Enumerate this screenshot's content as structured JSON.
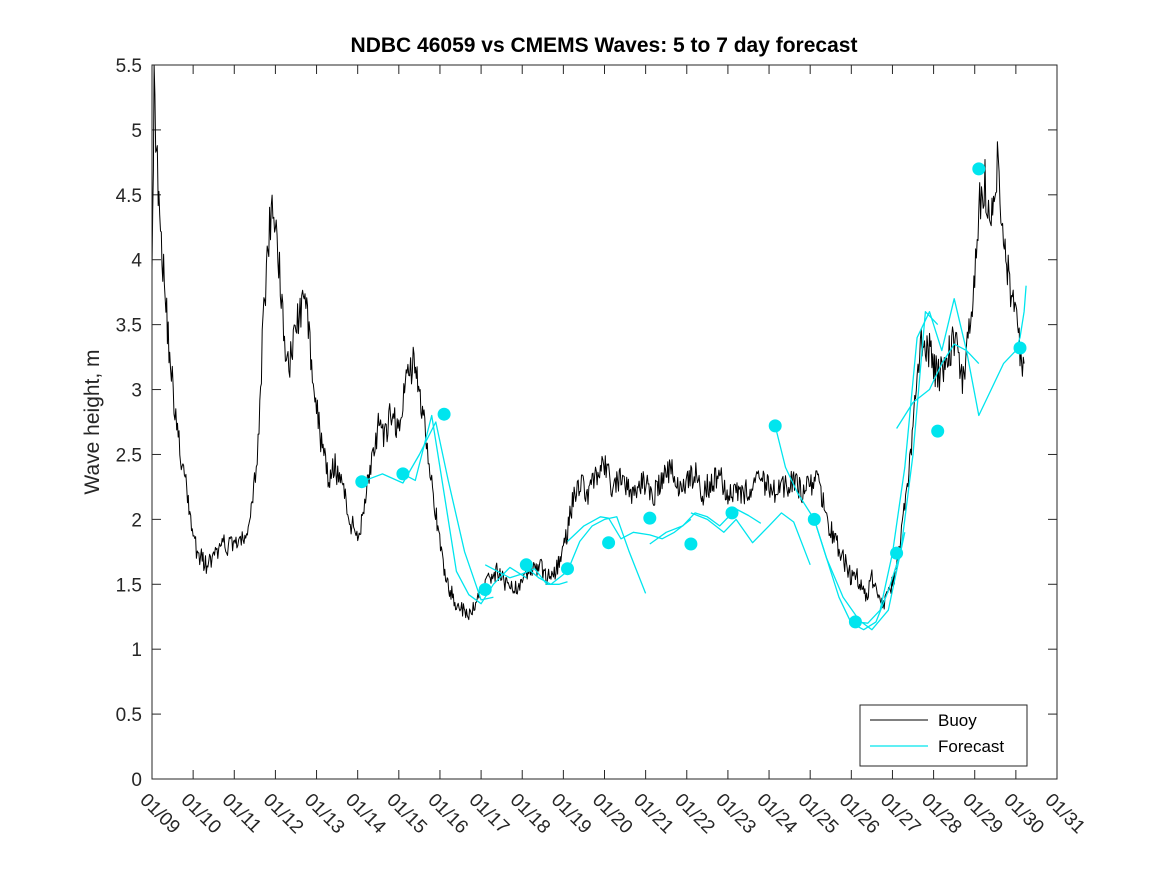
{
  "chart_data": {
    "type": "line",
    "title": "NDBC 46059 vs CMEMS Waves: 5 to 7 day forecast",
    "xlabel": "",
    "ylabel": "Wave height, m",
    "xlim": [
      0,
      22
    ],
    "ylim": [
      0,
      5.5
    ],
    "x_tick_labels": [
      "01/09",
      "01/10",
      "01/11",
      "01/12",
      "01/13",
      "01/14",
      "01/15",
      "01/16",
      "01/17",
      "01/18",
      "01/19",
      "01/20",
      "01/21",
      "01/22",
      "01/23",
      "01/24",
      "01/25",
      "01/26",
      "01/27",
      "01/28",
      "01/29",
      "01/30",
      "01/31"
    ],
    "y_ticks": [
      0,
      0.5,
      1,
      1.5,
      2,
      2.5,
      3,
      3.5,
      4,
      4.5,
      5,
      5.5
    ],
    "y_tick_labels": [
      "0",
      "0.5",
      "1",
      "1.5",
      "2",
      "2.5",
      "3",
      "3.5",
      "4",
      "4.5",
      "5",
      "5.5"
    ],
    "x_unit": "days since 01/09",
    "legend": {
      "position": "bottom-right",
      "entries": [
        "Buoy",
        "Forecast"
      ]
    },
    "colors": {
      "buoy": "#000000",
      "forecast": "#00e5ee",
      "axes": "#262626"
    },
    "series": [
      {
        "name": "Buoy",
        "color": "#000000",
        "x": [
          0,
          0.05,
          0.15,
          0.3,
          0.45,
          0.6,
          0.75,
          0.9,
          1.0,
          1.1,
          1.3,
          1.5,
          1.6,
          1.75,
          1.9,
          2.0,
          2.15,
          2.3,
          2.45,
          2.6,
          2.7,
          2.9,
          3.1,
          3.2,
          3.35,
          3.5,
          3.7,
          3.9,
          4.1,
          4.3,
          4.45,
          4.6,
          4.8,
          5.0,
          5.15,
          5.3,
          5.5,
          5.65,
          5.8,
          6.0,
          6.2,
          6.35,
          6.5,
          6.65,
          6.8,
          6.95,
          7.1,
          7.25,
          7.4,
          7.55,
          7.7,
          7.85,
          8.0,
          8.2,
          8.4,
          8.6,
          8.8,
          9.0,
          9.2,
          9.4,
          9.6,
          9.8,
          10.0,
          10.2,
          10.4,
          10.6,
          10.8,
          11.0,
          11.2,
          11.4,
          11.6,
          11.8,
          12.0,
          12.2,
          12.4,
          12.6,
          12.8,
          13.0,
          13.2,
          13.4,
          13.6,
          13.8,
          14.0,
          14.2,
          14.4,
          14.6,
          14.8,
          15.0,
          15.2,
          15.4,
          15.6,
          15.8,
          16.0,
          16.2,
          16.4,
          16.6,
          16.8,
          17.0,
          17.1,
          17.2,
          17.35,
          17.5,
          17.65,
          17.8,
          17.95,
          18.1,
          18.3,
          18.5,
          18.7,
          18.9,
          19.1,
          19.3,
          19.5,
          19.7,
          19.9,
          20.0,
          20.1,
          20.25,
          20.4,
          20.55,
          20.7,
          20.85,
          21.0,
          21.1,
          21.2
        ],
        "values": [
          4.1,
          5.3,
          4.6,
          3.8,
          3.2,
          2.7,
          2.4,
          2.1,
          1.9,
          1.75,
          1.65,
          1.7,
          1.75,
          1.8,
          1.8,
          1.85,
          1.8,
          1.9,
          2.1,
          2.7,
          3.5,
          4.4,
          4.0,
          3.4,
          3.2,
          3.5,
          3.7,
          3.2,
          2.6,
          2.3,
          2.4,
          2.3,
          2.0,
          1.85,
          2.1,
          2.4,
          2.7,
          2.6,
          2.8,
          2.7,
          3.1,
          3.2,
          3.0,
          2.7,
          2.3,
          1.9,
          1.6,
          1.45,
          1.35,
          1.3,
          1.25,
          1.35,
          1.45,
          1.55,
          1.6,
          1.5,
          1.45,
          1.55,
          1.6,
          1.65,
          1.55,
          1.6,
          1.75,
          2.1,
          2.3,
          2.2,
          2.35,
          2.4,
          2.25,
          2.3,
          2.2,
          2.25,
          2.3,
          2.2,
          2.3,
          2.4,
          2.25,
          2.3,
          2.35,
          2.2,
          2.3,
          2.35,
          2.2,
          2.25,
          2.2,
          2.25,
          2.3,
          2.25,
          2.2,
          2.25,
          2.3,
          2.2,
          2.25,
          2.3,
          2.0,
          1.85,
          1.7,
          1.55,
          1.6,
          1.5,
          1.4,
          1.55,
          1.45,
          1.35,
          1.45,
          1.6,
          2.1,
          2.7,
          3.4,
          3.3,
          3.1,
          3.2,
          3.4,
          3.1,
          3.5,
          3.8,
          4.4,
          4.6,
          4.3,
          4.7,
          4.2,
          3.8,
          3.5,
          3.3,
          3.2
        ]
      },
      {
        "name": "Forecast",
        "color": "#00e5ee",
        "segments": [
          {
            "x": [
              5.1,
              5.6,
              6.1,
              6.5,
              6.9,
              7.2,
              7.6,
              8.0,
              8.3
            ],
            "values": [
              2.29,
              2.35,
              2.28,
              2.5,
              2.75,
              2.3,
              1.75,
              1.38,
              1.4
            ]
          },
          {
            "x": [
              6.1,
              6.4,
              6.8,
              7.1,
              7.4,
              7.7,
              8.0,
              8.3,
              8.7,
              9.1
            ],
            "values": [
              2.35,
              2.3,
              2.8,
              2.2,
              1.6,
              1.42,
              1.35,
              1.5,
              1.63,
              1.55
            ]
          },
          {
            "x": [
              8.1,
              8.4,
              8.7,
              9.0,
              9.3,
              9.6,
              9.9,
              10.1
            ],
            "values": [
              1.65,
              1.6,
              1.55,
              1.58,
              1.62,
              1.5,
              1.5,
              1.52
            ]
          },
          {
            "x": [
              9.1,
              9.4,
              9.7,
              10.1,
              10.4,
              10.7,
              11.0,
              11.3,
              11.6,
              12.0
            ],
            "values": [
              1.63,
              1.55,
              1.5,
              1.6,
              1.83,
              1.95,
              2.0,
              2.02,
              1.75,
              1.43
            ]
          },
          {
            "x": [
              10.1,
              10.5,
              10.9,
              11.1,
              11.4,
              11.7,
              12.1,
              12.4,
              12.7,
              13.1
            ],
            "values": [
              1.83,
              1.95,
              2.02,
              2.01,
              1.85,
              1.9,
              1.88,
              1.85,
              1.9,
              2.0
            ]
          },
          {
            "x": [
              12.1,
              12.5,
              12.9,
              13.2,
              13.5,
              13.8,
              14.2,
              14.5,
              14.8
            ],
            "values": [
              1.81,
              1.9,
              1.95,
              2.05,
              2.02,
              1.95,
              2.08,
              2.03,
              1.97
            ]
          },
          {
            "x": [
              13.1,
              13.5,
              13.9,
              14.2,
              14.6,
              15.0,
              15.3,
              15.6,
              16.0
            ],
            "values": [
              2.05,
              2.0,
              1.9,
              2.0,
              1.82,
              1.95,
              2.05,
              1.98,
              1.65
            ]
          },
          {
            "x": [
              15.15,
              15.4,
              15.7,
              16.1,
              16.4,
              16.8,
              17.2,
              17.5,
              17.9,
              18.3
            ],
            "values": [
              2.72,
              2.4,
              2.2,
              2.0,
              1.7,
              1.4,
              1.22,
              1.15,
              1.3,
              1.9
            ]
          },
          {
            "x": [
              16.1,
              16.4,
              16.7,
              17.0,
              17.3,
              17.6,
              17.9,
              18.2,
              18.5,
              18.8,
              19.1
            ],
            "values": [
              2.0,
              1.7,
              1.4,
              1.2,
              1.15,
              1.21,
              1.45,
              1.75,
              2.5,
              3.6,
              3.5
            ]
          },
          {
            "x": [
              17.1,
              17.4,
              17.7,
              18.0,
              18.3,
              18.6,
              18.9,
              19.2,
              19.5,
              19.8,
              20.1
            ],
            "values": [
              1.21,
              1.2,
              1.3,
              1.74,
              2.4,
              3.4,
              3.6,
              3.3,
              3.7,
              3.3,
              3.2
            ]
          },
          {
            "x": [
              18.1,
              18.5,
              18.9,
              19.2,
              19.5,
              19.8,
              20.1,
              20.4,
              20.7,
              21.0,
              21.1,
              21.2,
              21.25
            ],
            "values": [
              2.7,
              2.9,
              3.0,
              3.2,
              3.35,
              3.3,
              2.8,
              3.0,
              3.2,
              3.3,
              3.4,
              3.6,
              3.8
            ]
          }
        ],
        "markers": {
          "x": [
            5.1,
            6.1,
            7.1,
            8.1,
            9.1,
            10.1,
            11.1,
            12.1,
            13.1,
            14.1,
            15.15,
            16.1,
            17.1,
            18.1,
            19.1,
            20.1,
            21.1
          ],
          "values": [
            2.29,
            2.35,
            2.81,
            1.46,
            1.65,
            1.62,
            1.82,
            2.01,
            1.81,
            2.05,
            2.72,
            2.0,
            1.21,
            1.74,
            2.68,
            4.7,
            3.32
          ]
        }
      }
    ]
  }
}
